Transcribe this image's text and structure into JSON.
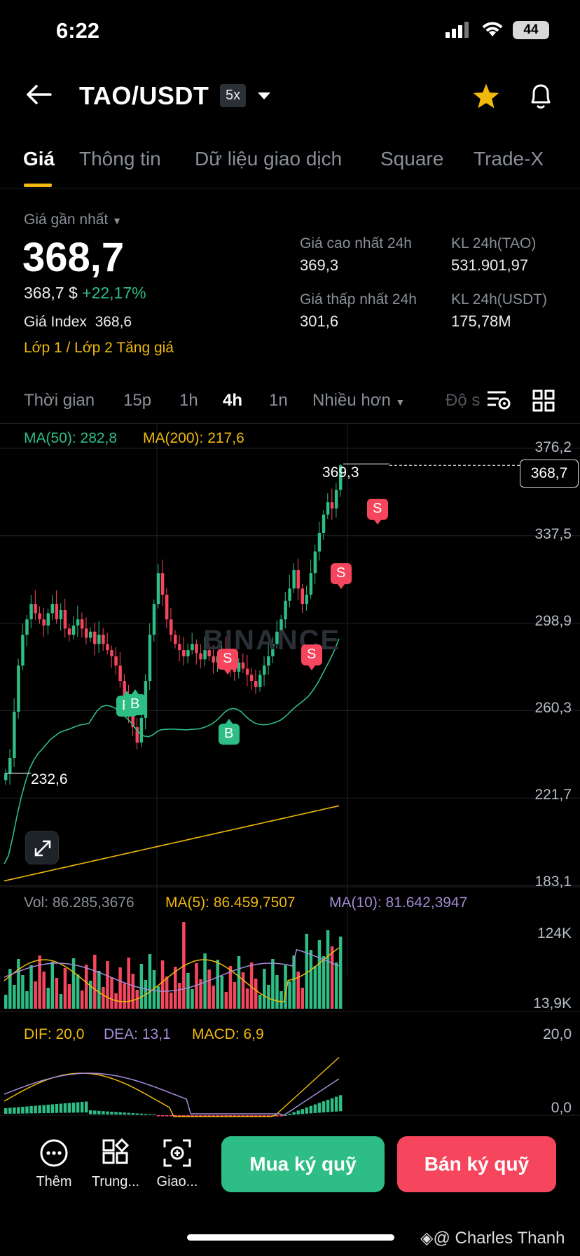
{
  "status": {
    "time": "6:22",
    "battery": "44"
  },
  "header": {
    "pair": "TAO/USDT",
    "leverage": "5x"
  },
  "tabs": [
    "Giá",
    "Thông tin",
    "Dữ liệu giao dịch",
    "Square",
    "Trade-X"
  ],
  "price": {
    "last_label": "Giá gần nhất",
    "last": "368,7",
    "usd": "368,7 $",
    "change": "+22,17%",
    "index_label": "Giá Index",
    "index_value": "368,6",
    "layer_link": "Lớp 1 / Lớp 2",
    "tag_link": "Tăng giá"
  },
  "stats": {
    "high_label": "Giá cao nhất 24h",
    "high": "369,3",
    "vol_tao_label": "KL 24h(TAO)",
    "vol_tao": "531.901,97",
    "low_label": "Giá thấp nhất 24h",
    "low": "301,6",
    "vol_usdt_label": "KL 24h(USDT)",
    "vol_usdt": "175,78M"
  },
  "timeframes": [
    "Thời gian",
    "15p",
    "1h",
    "4h",
    "1n",
    "Nhiều hơn",
    "Độ s"
  ],
  "chart": {
    "ma50_label": "MA(50): 282,8",
    "ma200_label": "MA(200): 217,6",
    "y_ticks": [
      "376,2",
      "337,5",
      "298,9",
      "260,3",
      "221,7",
      "183,1"
    ],
    "high_marker": "369,3",
    "low_marker": "232,6",
    "current_price": "368,7",
    "watermark": "BINANCE",
    "signal_s": "S",
    "signal_b": "B"
  },
  "volume": {
    "vol_label": "Vol: 86.285,3676",
    "ma5_label": "MA(5): 86.459,7507",
    "ma10_label": "MA(10): 81.642,3947",
    "top_tick": "124K",
    "bottom_tick": "13,9K"
  },
  "macd": {
    "dif_label": "DIF: 20,0",
    "dea_label": "DEA: 13,1",
    "macd_label": "MACD: 6,9",
    "top_tick": "20,0",
    "bottom_tick": "0,0"
  },
  "bottom_nav": {
    "more": "Thêm",
    "center": "Trung...",
    "trade": "Giao...",
    "buy": "Mua ký quỹ",
    "sell": "Bán ký quỹ"
  },
  "credit": "@ Charles Thanh",
  "colors": {
    "up": "#2ebd85",
    "down": "#f6465d",
    "accent": "#f0b90b",
    "ma10": "#a48bd6"
  }
}
